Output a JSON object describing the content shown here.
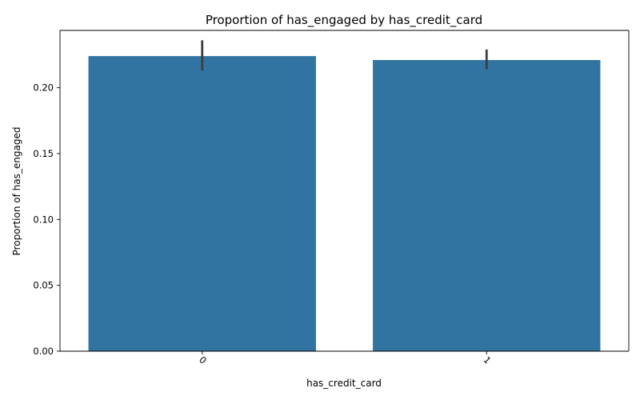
{
  "chart_data": {
    "type": "bar",
    "title": "Proportion of has_engaged by has_credit_card",
    "xlabel": "has_credit_card",
    "ylabel": "Proportion of has_engaged",
    "categories": [
      "0",
      "1"
    ],
    "values": [
      0.224,
      0.221
    ],
    "error_bars": [
      {
        "low": 0.213,
        "high": 0.236
      },
      {
        "low": 0.214,
        "high": 0.229
      }
    ],
    "ylim": [
      0,
      0.2435
    ],
    "yticks": [
      0.0,
      0.05,
      0.1,
      0.15,
      0.2
    ],
    "ytick_labels": [
      "0.00",
      "0.05",
      "0.10",
      "0.15",
      "0.20"
    ],
    "xtick_rotation_deg": 45,
    "grid": false,
    "legend": "none",
    "colors": {
      "bar": "#3274a1",
      "errbar": "#3d3d3d",
      "axes": "#000000",
      "background": "#ffffff"
    }
  }
}
